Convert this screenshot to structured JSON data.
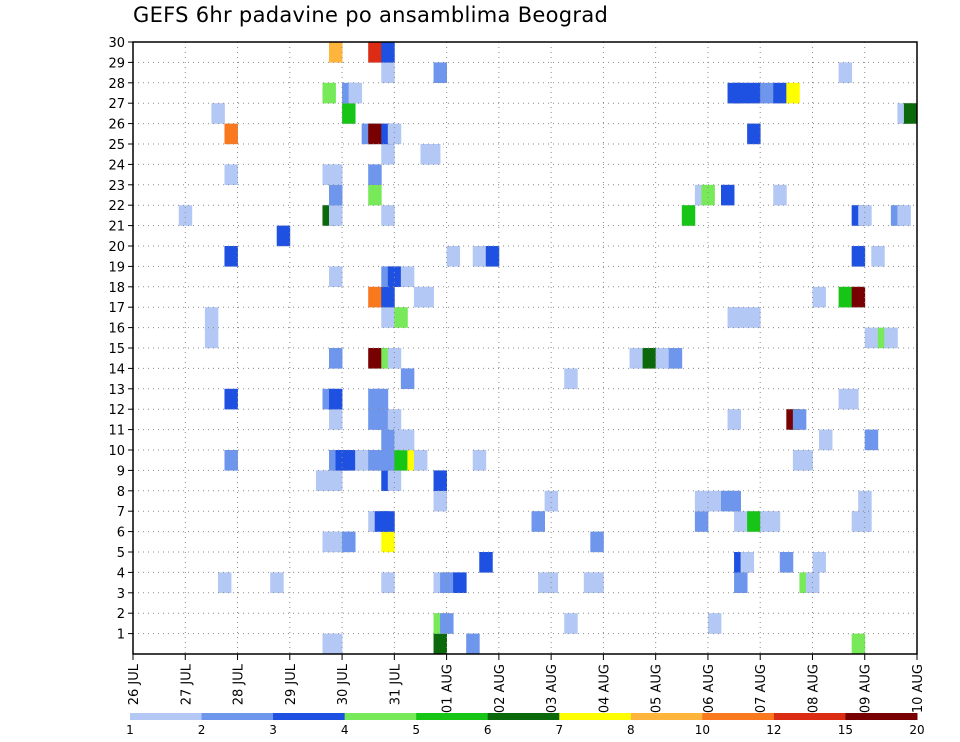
{
  "chart_data": {
    "type": "heatmap",
    "title": "GEFS 6hr padavine po ansamblima Beograd",
    "xlabel": "",
    "ylabel": "",
    "x_tick_labels": [
      "26 JUL",
      "27 JUL",
      "28 JUL",
      "29 JUL",
      "30 JUL",
      "31 JUL",
      "01 AUG",
      "02 AUG",
      "03 AUG",
      "04 AUG",
      "05 AUG",
      "06 AUG",
      "07 AUG",
      "08 AUG",
      "09 AUG",
      "10 AUG"
    ],
    "x_range": [
      0,
      60
    ],
    "y_tick_labels": [
      "1",
      "2",
      "3",
      "4",
      "5",
      "6",
      "7",
      "8",
      "9",
      "10",
      "11",
      "12",
      "13",
      "14",
      "15",
      "16",
      "17",
      "18",
      "19",
      "20",
      "21",
      "22",
      "23",
      "24",
      "25",
      "26",
      "27",
      "28",
      "29",
      "30"
    ],
    "y_range": [
      0,
      30
    ],
    "grid": "dotted",
    "legend_placement": "bottom",
    "colorbar": {
      "labels": [
        "1",
        "2",
        "3",
        "4",
        "5",
        "6",
        "7",
        "8",
        "10",
        "12",
        "15",
        "20"
      ],
      "colors": [
        "#b4c8f5",
        "#6e96ed",
        "#1e50e1",
        "#78ea5a",
        "#16c516",
        "#0b680b",
        "#ffff00",
        "#ffb43c",
        "#fa781e",
        "#dc2d14",
        "#780000"
      ]
    },
    "cells": [
      [
        15.5,
        0,
        "#b4c8f5"
      ],
      [
        16,
        0,
        "#b4c8f5"
      ],
      [
        26.5,
        0,
        "#6e96ed"
      ],
      [
        24,
        0,
        "#0b680b"
      ],
      [
        56,
        0,
        "#78ea5a"
      ],
      [
        24,
        1,
        "#78ea5a"
      ],
      [
        24.5,
        1,
        "#6e96ed"
      ],
      [
        34,
        1,
        "#b4c8f5"
      ],
      [
        45,
        1,
        "#b4c8f5"
      ],
      [
        7.5,
        3,
        "#b4c8f5"
      ],
      [
        11.5,
        3,
        "#b4c8f5"
      ],
      [
        20,
        3,
        "#b4c8f5"
      ],
      [
        24,
        3,
        "#b4c8f5"
      ],
      [
        24.5,
        3,
        "#6e96ed"
      ],
      [
        25,
        3,
        "#6e96ed"
      ],
      [
        25.5,
        3,
        "#1e50e1"
      ],
      [
        32,
        3,
        "#b4c8f5"
      ],
      [
        32.5,
        3,
        "#b4c8f5"
      ],
      [
        35.5,
        3,
        "#b4c8f5"
      ],
      [
        36,
        3,
        "#b4c8f5"
      ],
      [
        47,
        3,
        "#6e96ed"
      ],
      [
        52,
        3,
        "#78ea5a"
      ],
      [
        52.5,
        3,
        "#b4c8f5"
      ],
      [
        27.5,
        4,
        "#1e50e1"
      ],
      [
        47,
        4,
        "#1e50e1"
      ],
      [
        47.5,
        4,
        "#b4c8f5"
      ],
      [
        50.5,
        4,
        "#6e96ed"
      ],
      [
        53,
        4,
        "#b4c8f5"
      ],
      [
        15.5,
        5,
        "#b4c8f5"
      ],
      [
        16,
        5,
        "#b4c8f5"
      ],
      [
        17,
        5,
        "#6e96ed"
      ],
      [
        20,
        5,
        "#ffff00"
      ],
      [
        36,
        5,
        "#6e96ed"
      ],
      [
        19,
        6,
        "#b4c8f5"
      ],
      [
        19.5,
        6,
        "#1e50e1"
      ],
      [
        20,
        6,
        "#1e50e1"
      ],
      [
        31.5,
        6,
        "#6e96ed"
      ],
      [
        44,
        6,
        "#6e96ed"
      ],
      [
        47,
        6,
        "#b4c8f5"
      ],
      [
        48,
        6,
        "#16c516"
      ],
      [
        49,
        6,
        "#b4c8f5"
      ],
      [
        49.5,
        6,
        "#b4c8f5"
      ],
      [
        56,
        6,
        "#b4c8f5"
      ],
      [
        56.5,
        6,
        "#b4c8f5"
      ],
      [
        24,
        7,
        "#b4c8f5"
      ],
      [
        32.5,
        7,
        "#b4c8f5"
      ],
      [
        44,
        7,
        "#b4c8f5"
      ],
      [
        45,
        7,
        "#b4c8f5"
      ],
      [
        46,
        7,
        "#6e96ed"
      ],
      [
        46.5,
        7,
        "#6e96ed"
      ],
      [
        56.5,
        7,
        "#b4c8f5"
      ],
      [
        15,
        8,
        "#b4c8f5"
      ],
      [
        15.5,
        8,
        "#b4c8f5"
      ],
      [
        16,
        8,
        "#b4c8f5"
      ],
      [
        20,
        8,
        "#1e50e1"
      ],
      [
        20.5,
        8,
        "#b4c8f5"
      ],
      [
        24,
        8,
        "#1e50e1"
      ],
      [
        8,
        9,
        "#6e96ed"
      ],
      [
        16,
        9,
        "#6e96ed"
      ],
      [
        16.5,
        9,
        "#1e50e1"
      ],
      [
        17,
        9,
        "#1e50e1"
      ],
      [
        18,
        9,
        "#b4c8f5"
      ],
      [
        19,
        9,
        "#6e96ed"
      ],
      [
        19.5,
        9,
        "#6e96ed"
      ],
      [
        20,
        9,
        "#6e96ed"
      ],
      [
        21,
        9,
        "#16c516"
      ],
      [
        22,
        9,
        "#ffff00"
      ],
      [
        22.5,
        9,
        "#b4c8f5"
      ],
      [
        27,
        9,
        "#b4c8f5"
      ],
      [
        51.5,
        9,
        "#b4c8f5"
      ],
      [
        52,
        9,
        "#b4c8f5"
      ],
      [
        20,
        10,
        "#6e96ed"
      ],
      [
        21,
        10,
        "#b4c8f5"
      ],
      [
        21.5,
        10,
        "#b4c8f5"
      ],
      [
        53.5,
        10,
        "#b4c8f5"
      ],
      [
        57,
        10,
        "#6e96ed"
      ],
      [
        16,
        11,
        "#b4c8f5"
      ],
      [
        19,
        11,
        "#6e96ed"
      ],
      [
        19.5,
        11,
        "#6e96ed"
      ],
      [
        20.5,
        11,
        "#b4c8f5"
      ],
      [
        46.5,
        11,
        "#b4c8f5"
      ],
      [
        51,
        11,
        "#780000"
      ],
      [
        51.5,
        11,
        "#6e96ed"
      ],
      [
        8,
        12,
        "#1e50e1"
      ],
      [
        15.5,
        12,
        "#6e96ed"
      ],
      [
        16,
        12,
        "#1e50e1"
      ],
      [
        19,
        12,
        "#6e96ed"
      ],
      [
        19.5,
        12,
        "#6e96ed"
      ],
      [
        55,
        12,
        "#b4c8f5"
      ],
      [
        55.5,
        12,
        "#b4c8f5"
      ],
      [
        21.5,
        13,
        "#6e96ed"
      ],
      [
        34,
        13,
        "#b4c8f5"
      ],
      [
        16,
        14,
        "#6e96ed"
      ],
      [
        19,
        14,
        "#780000"
      ],
      [
        20,
        14,
        "#78ea5a"
      ],
      [
        20.5,
        14,
        "#b4c8f5"
      ],
      [
        39,
        14,
        "#b4c8f5"
      ],
      [
        40,
        14,
        "#0b680b"
      ],
      [
        41,
        14,
        "#b4c8f5"
      ],
      [
        42,
        14,
        "#6e96ed"
      ],
      [
        6.5,
        15,
        "#b4c8f5"
      ],
      [
        57,
        15,
        "#b4c8f5"
      ],
      [
        58,
        15,
        "#78ea5a"
      ],
      [
        58.5,
        15,
        "#b4c8f5"
      ],
      [
        6.5,
        16,
        "#b4c8f5"
      ],
      [
        20,
        16,
        "#b4c8f5"
      ],
      [
        21,
        16,
        "#78ea5a"
      ],
      [
        46.5,
        16,
        "#b4c8f5"
      ],
      [
        47,
        16,
        "#b4c8f5"
      ],
      [
        48,
        16,
        "#b4c8f5"
      ],
      [
        19,
        17,
        "#fa781e"
      ],
      [
        20,
        17,
        "#1e50e1"
      ],
      [
        22.5,
        17,
        "#b4c8f5"
      ],
      [
        23,
        17,
        "#b4c8f5"
      ],
      [
        53,
        17,
        "#b4c8f5"
      ],
      [
        55,
        17,
        "#16c516"
      ],
      [
        56,
        17,
        "#780000"
      ],
      [
        16,
        18,
        "#b4c8f5"
      ],
      [
        20,
        18,
        "#6e96ed"
      ],
      [
        20.5,
        18,
        "#1e50e1"
      ],
      [
        21.5,
        18,
        "#b4c8f5"
      ],
      [
        8,
        19,
        "#1e50e1"
      ],
      [
        25,
        19,
        "#b4c8f5"
      ],
      [
        27,
        19,
        "#b4c8f5"
      ],
      [
        28,
        19,
        "#1e50e1"
      ],
      [
        56,
        19,
        "#1e50e1"
      ],
      [
        57.5,
        19,
        "#b4c8f5"
      ],
      [
        12,
        20,
        "#1e50e1"
      ],
      [
        4.5,
        21,
        "#b4c8f5"
      ],
      [
        15.5,
        21,
        "#0b680b"
      ],
      [
        16,
        21,
        "#b4c8f5"
      ],
      [
        20,
        21,
        "#b4c8f5"
      ],
      [
        43,
        21,
        "#16c516"
      ],
      [
        56,
        21,
        "#1e50e1"
      ],
      [
        56.5,
        21,
        "#b4c8f5"
      ],
      [
        59,
        21,
        "#6e96ed"
      ],
      [
        59.5,
        21,
        "#b4c8f5"
      ],
      [
        16,
        22,
        "#6e96ed"
      ],
      [
        19,
        22,
        "#78ea5a"
      ],
      [
        44,
        22,
        "#b4c8f5"
      ],
      [
        44.5,
        22,
        "#78ea5a"
      ],
      [
        46,
        22,
        "#1e50e1"
      ],
      [
        50,
        22,
        "#b4c8f5"
      ],
      [
        8,
        23,
        "#b4c8f5"
      ],
      [
        15.5,
        23,
        "#b4c8f5"
      ],
      [
        16,
        23,
        "#b4c8f5"
      ],
      [
        19,
        23,
        "#6e96ed"
      ],
      [
        20,
        24,
        "#b4c8f5"
      ],
      [
        23,
        24,
        "#b4c8f5"
      ],
      [
        23.5,
        24,
        "#b4c8f5"
      ],
      [
        8,
        25,
        "#fa781e"
      ],
      [
        18.5,
        25,
        "#6e96ed"
      ],
      [
        19,
        25,
        "#780000"
      ],
      [
        20,
        25,
        "#1e50e1"
      ],
      [
        20.5,
        25,
        "#b4c8f5"
      ],
      [
        48,
        25,
        "#1e50e1"
      ],
      [
        7,
        26,
        "#b4c8f5"
      ],
      [
        17,
        26,
        "#16c516"
      ],
      [
        59.5,
        26,
        "#b4c8f5"
      ],
      [
        60,
        26,
        "#0b680b"
      ],
      [
        15.5,
        27,
        "#78ea5a"
      ],
      [
        17,
        27,
        "#6e96ed"
      ],
      [
        17.5,
        27,
        "#b4c8f5"
      ],
      [
        46.5,
        27,
        "#1e50e1"
      ],
      [
        47,
        27,
        "#1e50e1"
      ],
      [
        48,
        27,
        "#1e50e1"
      ],
      [
        49,
        27,
        "#6e96ed"
      ],
      [
        50,
        27,
        "#1e50e1"
      ],
      [
        51,
        27,
        "#ffff00"
      ],
      [
        20,
        28,
        "#b4c8f5"
      ],
      [
        24,
        28,
        "#6e96ed"
      ],
      [
        55,
        28,
        "#b4c8f5"
      ],
      [
        16,
        29,
        "#ffb43c"
      ],
      [
        19,
        29,
        "#dc2d14"
      ],
      [
        20,
        29,
        "#1e50e1"
      ]
    ]
  }
}
